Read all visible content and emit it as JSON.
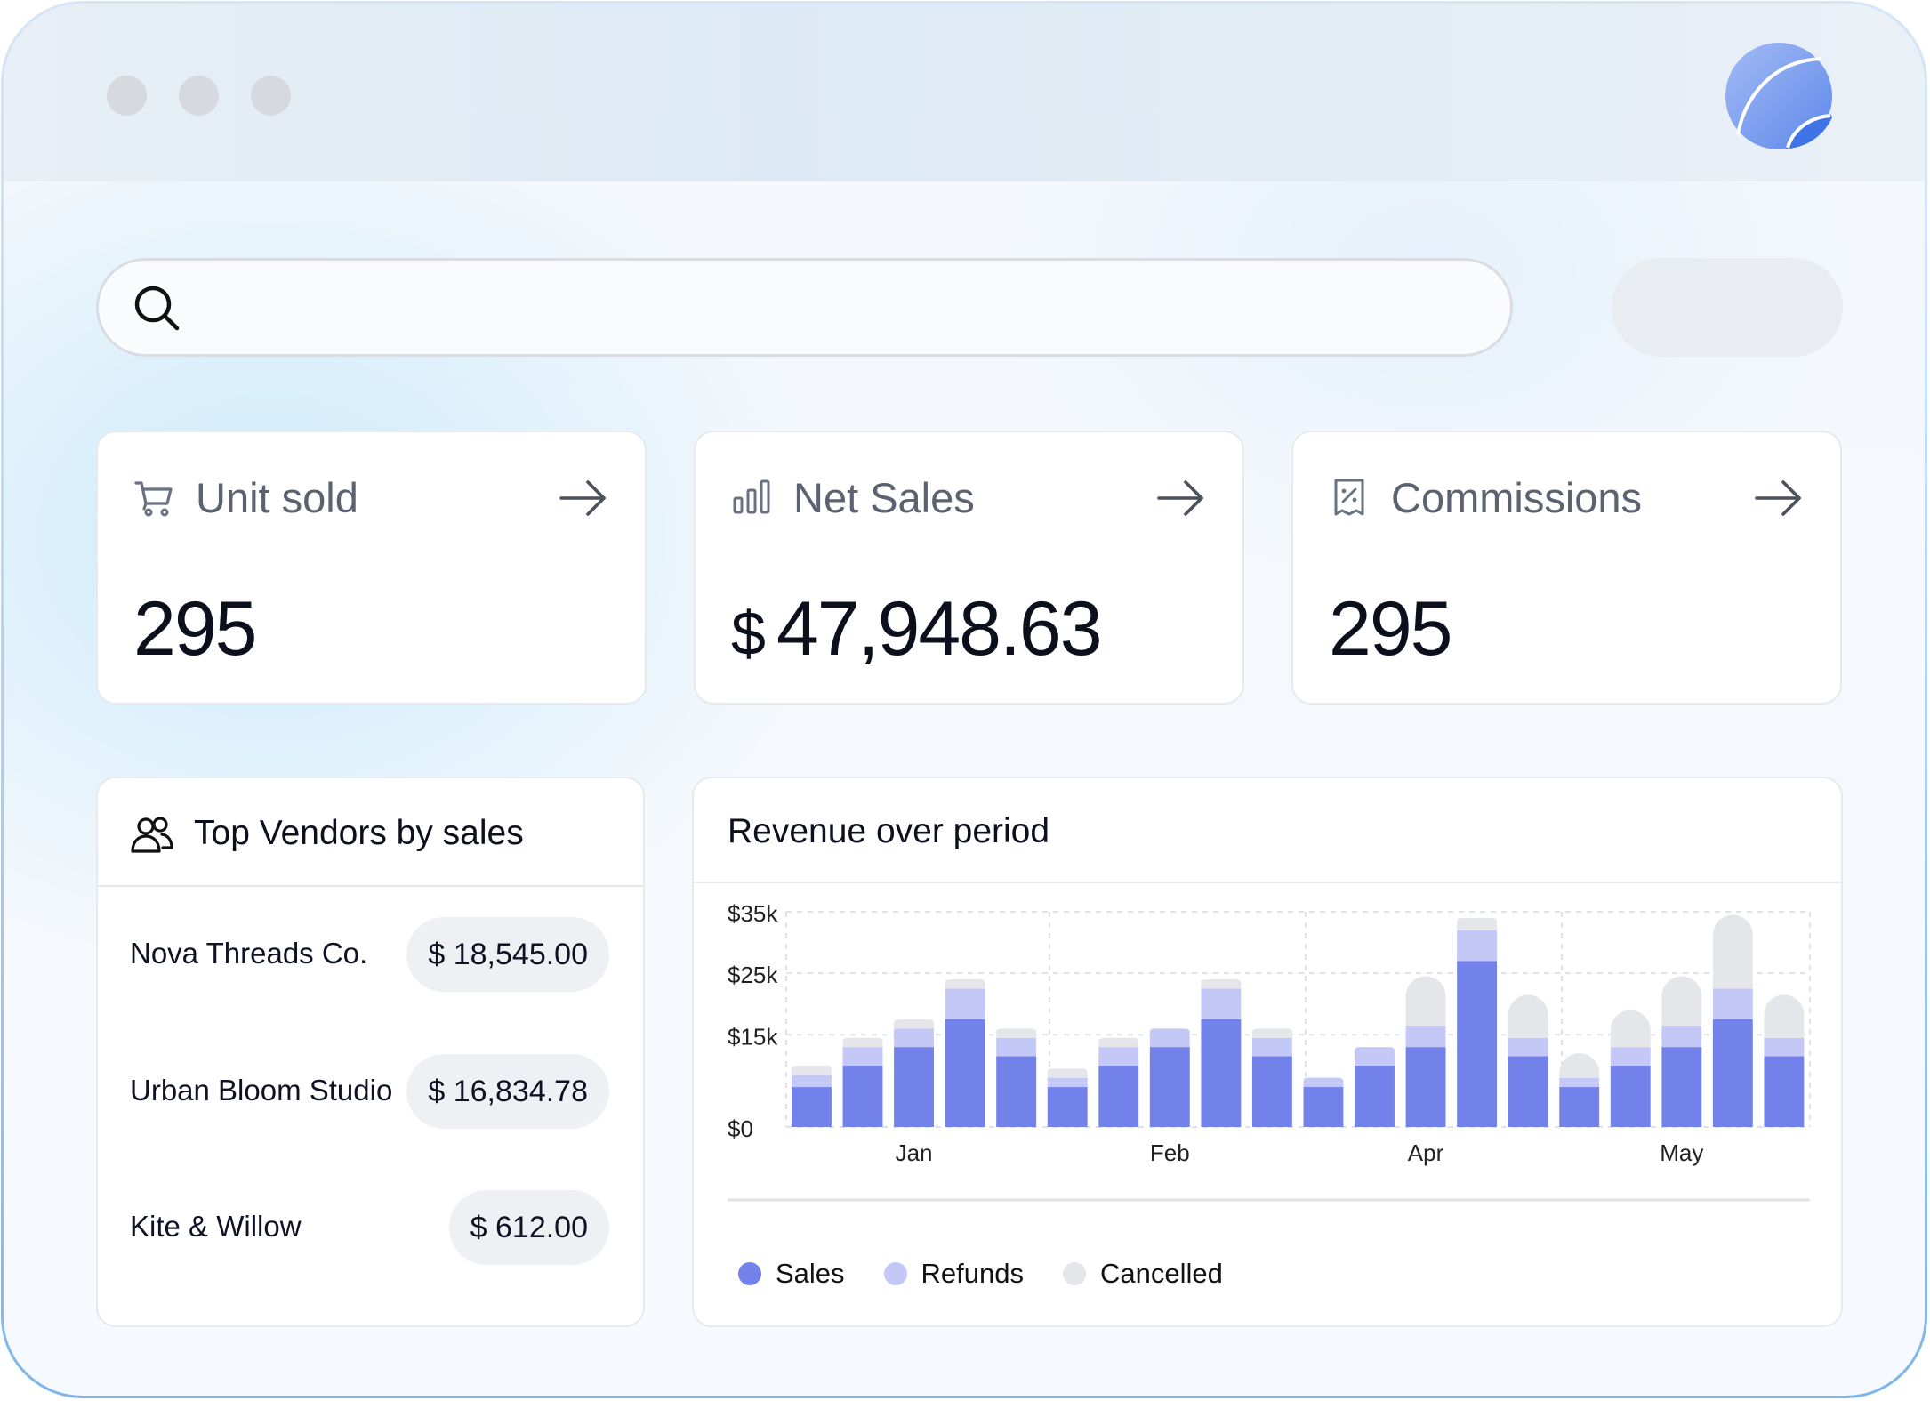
{
  "window": {
    "dots": [
      "close",
      "minimize",
      "maximize"
    ]
  },
  "search": {
    "placeholder": "",
    "value": ""
  },
  "stats": [
    {
      "label": "Unit sold",
      "value": "295",
      "currency": "",
      "icon": "cart-icon"
    },
    {
      "label": "Net Sales",
      "value": "47,948.63",
      "currency": "$",
      "icon": "bar-chart-icon"
    },
    {
      "label": "Commissions",
      "value": "295",
      "currency": "",
      "icon": "receipt-percent-icon"
    }
  ],
  "vendors": {
    "title": "Top Vendors by sales",
    "items": [
      {
        "name": "Nova Threads Co.",
        "amount": "$ 18,545.00"
      },
      {
        "name": "Urban Bloom Studio",
        "amount": "$ 16,834.78"
      },
      {
        "name": "Kite & Willow",
        "amount": "$ 612.00"
      }
    ]
  },
  "revenue": {
    "title": "Revenue over period",
    "legend": [
      {
        "label": "Sales",
        "color": "#7282ea"
      },
      {
        "label": "Refunds",
        "color": "#c3c8f6"
      },
      {
        "label": "Cancelled",
        "color": "#e5e6ea"
      }
    ]
  },
  "colors": {
    "accent": "#7282ea",
    "refunds": "#c3c8f6",
    "cancelled": "#e5e6ea",
    "logo": "#6f93ee"
  },
  "chart_data": {
    "type": "bar",
    "stacked": true,
    "title": "Revenue over period",
    "xlabel": "",
    "ylabel": "",
    "ylim": [
      0,
      35000
    ],
    "yticks": [
      0,
      15000,
      25000,
      35000
    ],
    "ytick_labels": [
      "$0",
      "$15k",
      "$25k",
      "$35k"
    ],
    "month_labels": [
      "Jan",
      "Feb",
      "Apr",
      "May"
    ],
    "month_label_bar_index": [
      2,
      7,
      12,
      17
    ],
    "grid": true,
    "legend_position": "bottom",
    "series": [
      {
        "name": "Sales",
        "color": "#7282ea",
        "values": [
          6500,
          10000,
          13000,
          17500,
          11500,
          6500,
          10000,
          13000,
          17500,
          11500,
          6500,
          10000,
          13000,
          27000,
          11500,
          6500,
          10000,
          13000,
          17500,
          11500
        ]
      },
      {
        "name": "Refunds",
        "color": "#c3c8f6",
        "values": [
          2000,
          3000,
          3000,
          5000,
          3000,
          1500,
          3000,
          3000,
          5000,
          3000,
          1500,
          3000,
          3500,
          5000,
          3000,
          1500,
          3000,
          3500,
          5000,
          3000
        ]
      },
      {
        "name": "Cancelled",
        "color": "#e5e6ea",
        "values": [
          1500,
          1500,
          1500,
          1500,
          1500,
          1500,
          1500,
          0,
          1500,
          1500,
          0,
          0,
          8000,
          2000,
          7000,
          4000,
          6000,
          8000,
          12000,
          7000
        ]
      }
    ]
  }
}
